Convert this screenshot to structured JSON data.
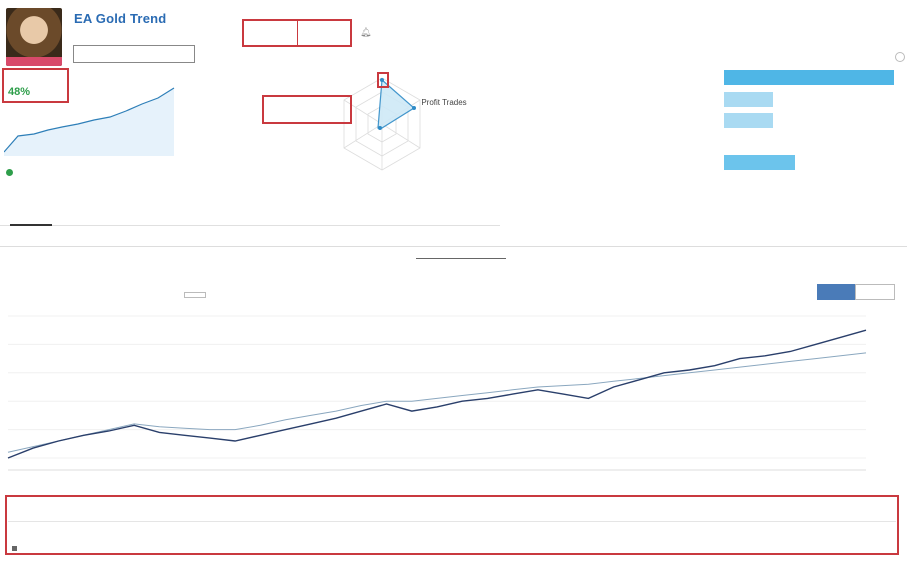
{
  "header": {
    "avatar_badge": "",
    "title": "EA Gold Trend",
    "subline": "",
    "copy_button": "",
    "growth_label": "",
    "growth_value": "48%",
    "indicator_1": "",
    "indicator_2": "",
    "subscribers": ""
  },
  "radar": {
    "top_label": "",
    "center_value": "",
    "left_label": "",
    "right_label": "Profit Trades",
    "right_value": "",
    "lower_left_label": "",
    "lower_left_value": "",
    "bottom_label": ""
  },
  "bars": [
    {
      "label": "",
      "value": "",
      "fraction": 1.0,
      "color": "#4fb6e6"
    },
    {
      "label": "",
      "value": "",
      "fraction": 0.29,
      "color": "#a9daf2"
    },
    {
      "label": "",
      "value": "",
      "fraction": 0.29,
      "color": "#a9daf2"
    },
    {
      "label": "",
      "value": "",
      "fraction": 0.0,
      "color": "#a9daf2"
    },
    {
      "label": "",
      "value": "",
      "fraction": 0.42,
      "color": "#6cc4ec"
    }
  ],
  "status": "",
  "tabs": [
    "",
    "",
    "",
    "",
    "",
    "",
    "",
    "",
    ""
  ],
  "periods": [
    "",
    "",
    "",
    "",
    "",
    "",
    "",
    "",
    ""
  ],
  "summary": {
    "stat1_value": "",
    "stat1_sub": "",
    "stat2_value": "",
    "stat2_sub": "",
    "stat3_value": "",
    "stat3_sub": ""
  },
  "toggles": {
    "left": "",
    "right": ""
  },
  "chart_data": {
    "type": "line",
    "x_tick_labels": [
      "",
      "",
      "",
      "",
      "",
      "",
      "",
      "",
      "",
      "",
      "",
      "",
      "",
      "",
      "",
      "",
      "",
      "",
      ""
    ],
    "y_tick_labels": [
      "",
      "",
      "",
      "",
      "",
      ""
    ],
    "series": [
      {
        "values": [
          0,
          7,
          12,
          16,
          19,
          23,
          18,
          16,
          14,
          12,
          16,
          20,
          24,
          28,
          33,
          38,
          33,
          36,
          40,
          42,
          45,
          48,
          45,
          42,
          50,
          55,
          60,
          62,
          65,
          70,
          72,
          75,
          80,
          85,
          90
        ],
        "color": "#2a3f6b"
      },
      {
        "values": [
          4,
          8,
          12,
          16,
          20,
          24,
          22,
          21,
          20,
          20,
          23,
          27,
          30,
          33,
          37,
          40,
          40,
          42,
          44,
          46,
          48,
          50,
          51,
          52,
          54,
          56,
          58,
          60,
          62,
          64,
          66,
          68,
          70,
          72,
          74
        ],
        "color": "#8aa7bf"
      }
    ],
    "ylim": [
      0,
      100
    ]
  },
  "table": {
    "row1": [
      "",
      "",
      "",
      "",
      "",
      "",
      ""
    ],
    "row2": [
      "",
      "",
      "",
      "",
      "",
      ""
    ],
    "footer_left": "",
    "footer_right": ""
  }
}
